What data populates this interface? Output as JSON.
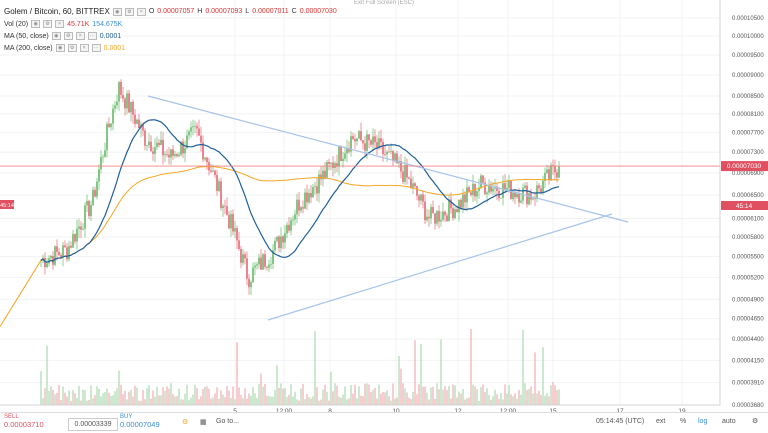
{
  "header": {
    "exit_fullscreen": "Exit Full Screen (ESC)",
    "symbol": "Golem / Bitcoin, 60, BITTREX",
    "ohlc": {
      "o_label": "O",
      "o": "0.00007057",
      "h_label": "H",
      "h": "0.00007093",
      "l_label": "L",
      "l": "0.00007011",
      "c_label": "C",
      "c": "0.00007030"
    },
    "vol": {
      "label": "Vol (20)",
      "value1": "45.71K",
      "value2": "154.675K"
    },
    "ma50": {
      "label": "MA (50, close)",
      "value": "0.0001"
    },
    "ma200": {
      "label": "MA (200, close)",
      "value": "0.0001"
    }
  },
  "colors": {
    "up": "#4caf50",
    "down": "#e05060",
    "ma50": "#1f5f99",
    "ma200": "#f5a623",
    "trendline": "#a8c4e8",
    "price_line": "#f08080"
  },
  "y_axis_labels": [
    "0.00010500",
    "0.00010000",
    "0.00009500",
    "0.00009000",
    "0.00008500",
    "0.00008100",
    "0.00007700",
    "0.00007300",
    "0.00006900",
    "0.00006500",
    "0.00006100",
    "0.00005800",
    "0.00005500",
    "0.00005200",
    "0.00004900",
    "0.00004650",
    "0.00004400",
    "0.00004150",
    "0.00003910",
    "0.00003680"
  ],
  "price_tag": "0.00007030",
  "price_tag2": "45:14",
  "x_axis_labels": [
    "5",
    "12:00",
    "8",
    "10",
    "12",
    "12:00",
    "15",
    "17",
    "19"
  ],
  "bottom": {
    "sell_label": "SELL",
    "sell_price": "0.00003710",
    "spread": "0.00003339",
    "buy_label": "BUY",
    "buy_price": "0.00007049",
    "goto": "Go to...",
    "time": "05:14:45 (UTC)",
    "ext": "ext",
    "pct": "%",
    "log": "log",
    "auto": "auto"
  },
  "chart_data": {
    "type": "candlestick",
    "x_labels": [
      "5",
      "12:00",
      "8",
      "10",
      "12",
      "12:00",
      "15",
      "17",
      "19"
    ],
    "close_anchors": [
      5.45e-05,
      5.6e-05,
      6.4e-05,
      8.7e-05,
      7.6e-05,
      7.2e-05,
      7.7e-05,
      6.4e-05,
      5.2e-05,
      5.6e-05,
      6.4e-05,
      6.9e-05,
      7.6e-05,
      7.4e-05,
      6.9e-05,
      6.1e-05,
      6.3e-05,
      6.7e-05,
      6.6e-05,
      6.5e-05,
      7.03e-05
    ],
    "last_price": 7.03e-05,
    "log_scale": true
  }
}
